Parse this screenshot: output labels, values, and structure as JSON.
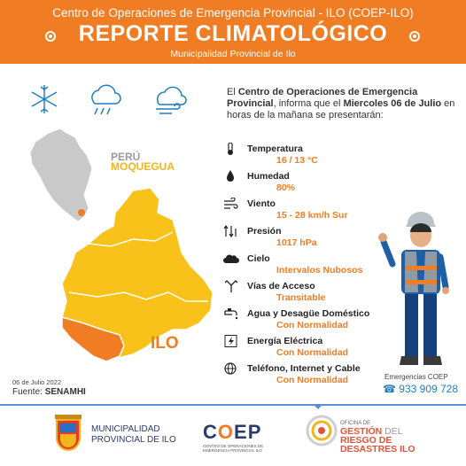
{
  "header": {
    "subtitle": "Centro de Operaciones de Emergencia Provincial  - ILO (COEP-ILO)",
    "title": "REPORTE CLIMATOLÓGICO",
    "org": "Municipalidad Provincial de Ilo"
  },
  "intro": {
    "p1": "El ",
    "b1": "Centro de Operaciones de Emergencia Provincial",
    "p2": ", informa que el ",
    "b2": "Miercoles 06 de Julio",
    "p3": " en horas de la mañana se presentarán:"
  },
  "map": {
    "country": "PERÚ",
    "region": "MOQUEGUA",
    "city": "ILO"
  },
  "report": {
    "date": "06 de Julio 2022",
    "source_label": "Fuente: ",
    "source": "SENAMHI"
  },
  "items": [
    {
      "label": "Temperatura",
      "value": "16 / 13 °C",
      "icon": "thermometer-icon"
    },
    {
      "label": "Humedad",
      "value": "80%",
      "icon": "drop-icon"
    },
    {
      "label": "Viento",
      "value": "15 - 28 km/h Sur",
      "icon": "wind-icon"
    },
    {
      "label": "Presión",
      "value": "1017 hPa",
      "icon": "pressure-icon"
    },
    {
      "label": "Cielo",
      "value": "Intervalos Nubosos",
      "icon": "cloud-icon"
    },
    {
      "label": "Vías de Acceso",
      "value": "Transitable",
      "icon": "road-icon"
    },
    {
      "label": "Agua y Desagüe Doméstico",
      "value": "Con Normalidad",
      "icon": "faucet-icon"
    },
    {
      "label": "Energía Eléctrica",
      "value": "Con Normalidad",
      "icon": "lightning-icon"
    },
    {
      "label": "Teléfono, Internet y Cable",
      "value": "Con Normalidad",
      "icon": "globe-icon"
    }
  ],
  "contact": {
    "label": "Emergencias  COEP",
    "phone": "933 909 728"
  },
  "footer": {
    "muni_line1": "MUNICIPALIDAD",
    "muni_line2": "PROVINCIAL DE ILO",
    "coep_c": "C",
    "coep_o": "O",
    "coep_ep": "EP",
    "coep_small": "CENTRO DE OPERACIONES DE EMERGENCIA PROVINCIAL ILO",
    "gest_small": "OFICINA DE",
    "gest_w1": "GESTIÓN",
    "gest_w2": " DEL",
    "gest_w3": "RIESGO DE",
    "gest_w4": "DESASTRES ILO"
  },
  "colors": {
    "orange": "#f07c23",
    "yellow": "#f2b51b",
    "blue": "#1e7fc1"
  }
}
